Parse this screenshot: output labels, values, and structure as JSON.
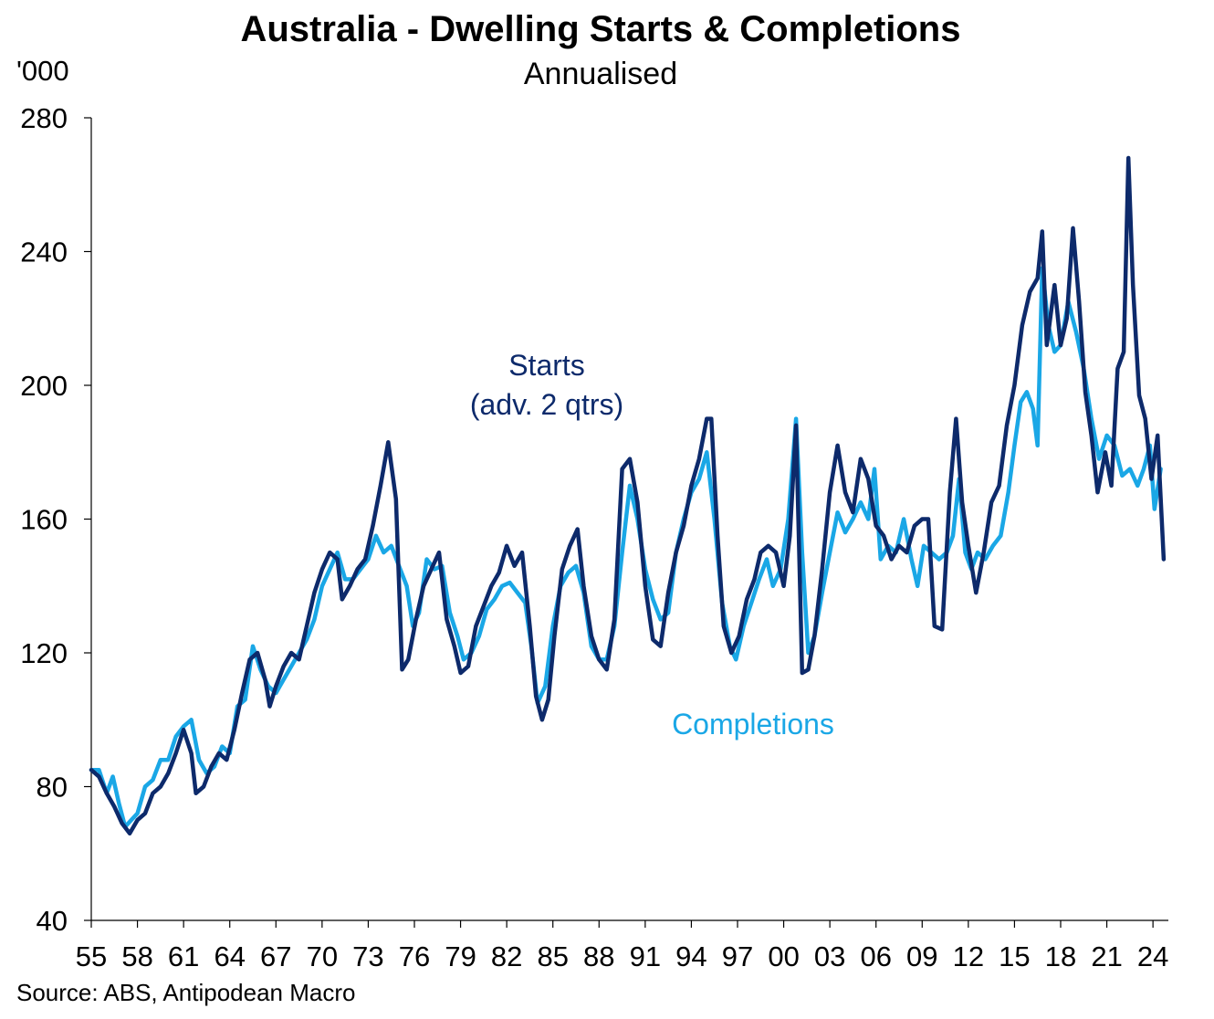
{
  "title": "Australia  - Dwelling Starts & Completions",
  "subtitle": "Annualised",
  "unit_label": "'000",
  "source": "Source: ABS, Antipodean  Macro",
  "colors": {
    "starts": "#0d2a6b",
    "completions": "#1aa7e6",
    "axis": "#000000"
  },
  "chart_data": {
    "type": "line",
    "title": "Australia  - Dwelling Starts & Completions",
    "subtitle": "Annualised",
    "ylabel": "'000",
    "xlabel": "",
    "ylim": [
      40,
      280
    ],
    "yticks": [
      40,
      80,
      120,
      160,
      200,
      240,
      280
    ],
    "xlim": [
      1955,
      2025
    ],
    "xtick_labels": [
      "55",
      "58",
      "61",
      "64",
      "67",
      "70",
      "73",
      "76",
      "79",
      "82",
      "85",
      "88",
      "91",
      "94",
      "97",
      "00",
      "03",
      "06",
      "09",
      "12",
      "15",
      "18",
      "21",
      "24"
    ],
    "grid": false,
    "annotations": [
      {
        "text": "Starts",
        "series": "Starts"
      },
      {
        "text": "(adv. 2 qtrs)",
        "series": "Starts"
      },
      {
        "text": "Completions",
        "series": "Completions"
      }
    ],
    "series": [
      {
        "name": "Starts",
        "color": "#0d2a6b",
        "points": [
          [
            1955.0,
            85
          ],
          [
            1955.5,
            83
          ],
          [
            1956.0,
            78
          ],
          [
            1956.5,
            74
          ],
          [
            1957.0,
            69
          ],
          [
            1957.5,
            66
          ],
          [
            1958.0,
            70
          ],
          [
            1958.5,
            72
          ],
          [
            1959.0,
            78
          ],
          [
            1959.5,
            80
          ],
          [
            1960.0,
            84
          ],
          [
            1960.5,
            90
          ],
          [
            1961.0,
            97
          ],
          [
            1961.5,
            90
          ],
          [
            1961.8,
            78
          ],
          [
            1962.3,
            80
          ],
          [
            1962.8,
            86
          ],
          [
            1963.3,
            90
          ],
          [
            1963.8,
            88
          ],
          [
            1964.3,
            97
          ],
          [
            1964.8,
            108
          ],
          [
            1965.3,
            118
          ],
          [
            1965.8,
            120
          ],
          [
            1966.3,
            112
          ],
          [
            1966.6,
            104
          ],
          [
            1967.0,
            110
          ],
          [
            1967.5,
            116
          ],
          [
            1968.0,
            120
          ],
          [
            1968.5,
            118
          ],
          [
            1969.0,
            128
          ],
          [
            1969.5,
            138
          ],
          [
            1970.0,
            145
          ],
          [
            1970.5,
            150
          ],
          [
            1971.0,
            148
          ],
          [
            1971.3,
            136
          ],
          [
            1971.8,
            140
          ],
          [
            1972.3,
            145
          ],
          [
            1972.8,
            148
          ],
          [
            1973.3,
            158
          ],
          [
            1973.8,
            170
          ],
          [
            1974.3,
            183
          ],
          [
            1974.8,
            166
          ],
          [
            1975.2,
            115
          ],
          [
            1975.6,
            118
          ],
          [
            1976.1,
            130
          ],
          [
            1976.6,
            140
          ],
          [
            1977.1,
            145
          ],
          [
            1977.6,
            150
          ],
          [
            1978.1,
            130
          ],
          [
            1978.6,
            122
          ],
          [
            1979.0,
            114
          ],
          [
            1979.5,
            116
          ],
          [
            1980.0,
            128
          ],
          [
            1980.5,
            134
          ],
          [
            1981.0,
            140
          ],
          [
            1981.5,
            144
          ],
          [
            1982.0,
            152
          ],
          [
            1982.5,
            146
          ],
          [
            1983.0,
            150
          ],
          [
            1983.5,
            128
          ],
          [
            1983.9,
            107
          ],
          [
            1984.3,
            100
          ],
          [
            1984.7,
            106
          ],
          [
            1985.1,
            125
          ],
          [
            1985.6,
            145
          ],
          [
            1986.1,
            152
          ],
          [
            1986.6,
            157
          ],
          [
            1987.0,
            140
          ],
          [
            1987.5,
            125
          ],
          [
            1988.0,
            118
          ],
          [
            1988.5,
            115
          ],
          [
            1989.0,
            130
          ],
          [
            1989.5,
            175
          ],
          [
            1990.0,
            178
          ],
          [
            1990.5,
            165
          ],
          [
            1991.0,
            140
          ],
          [
            1991.5,
            124
          ],
          [
            1992.0,
            122
          ],
          [
            1992.5,
            138
          ],
          [
            1993.0,
            150
          ],
          [
            1993.5,
            158
          ],
          [
            1994.0,
            170
          ],
          [
            1994.5,
            178
          ],
          [
            1995.0,
            190
          ],
          [
            1995.3,
            190
          ],
          [
            1995.7,
            155
          ],
          [
            1996.1,
            128
          ],
          [
            1996.6,
            120
          ],
          [
            1997.1,
            125
          ],
          [
            1997.6,
            136
          ],
          [
            1998.1,
            142
          ],
          [
            1998.5,
            150
          ],
          [
            1999.0,
            152
          ],
          [
            1999.5,
            150
          ],
          [
            2000.0,
            140
          ],
          [
            2000.4,
            155
          ],
          [
            2000.8,
            188
          ],
          [
            2001.2,
            114
          ],
          [
            2001.6,
            115
          ],
          [
            2002.0,
            125
          ],
          [
            2002.5,
            145
          ],
          [
            2003.0,
            168
          ],
          [
            2003.5,
            182
          ],
          [
            2004.0,
            168
          ],
          [
            2004.5,
            162
          ],
          [
            2005.0,
            178
          ],
          [
            2005.5,
            172
          ],
          [
            2006.0,
            158
          ],
          [
            2006.5,
            155
          ],
          [
            2007.0,
            148
          ],
          [
            2007.5,
            152
          ],
          [
            2008.0,
            150
          ],
          [
            2008.5,
            158
          ],
          [
            2009.0,
            160
          ],
          [
            2009.4,
            160
          ],
          [
            2009.8,
            128
          ],
          [
            2010.3,
            127
          ],
          [
            2010.8,
            168
          ],
          [
            2011.2,
            190
          ],
          [
            2011.6,
            165
          ],
          [
            2012.0,
            152
          ],
          [
            2012.5,
            138
          ],
          [
            2013.0,
            150
          ],
          [
            2013.5,
            165
          ],
          [
            2014.0,
            170
          ],
          [
            2014.5,
            188
          ],
          [
            2015.0,
            200
          ],
          [
            2015.5,
            218
          ],
          [
            2016.0,
            228
          ],
          [
            2016.5,
            232
          ],
          [
            2016.8,
            246
          ],
          [
            2017.1,
            212
          ],
          [
            2017.6,
            230
          ],
          [
            2018.0,
            212
          ],
          [
            2018.4,
            220
          ],
          [
            2018.8,
            247
          ],
          [
            2019.2,
            225
          ],
          [
            2019.6,
            198
          ],
          [
            2020.0,
            185
          ],
          [
            2020.4,
            168
          ],
          [
            2020.9,
            180
          ],
          [
            2021.3,
            170
          ],
          [
            2021.7,
            205
          ],
          [
            2022.1,
            210
          ],
          [
            2022.4,
            268
          ],
          [
            2022.7,
            230
          ],
          [
            2023.1,
            197
          ],
          [
            2023.5,
            190
          ],
          [
            2023.9,
            172
          ],
          [
            2024.3,
            185
          ],
          [
            2024.7,
            148
          ]
        ]
      },
      {
        "name": "Completions",
        "color": "#1aa7e6",
        "points": [
          [
            1955.0,
            85
          ],
          [
            1955.5,
            85
          ],
          [
            1956.0,
            78
          ],
          [
            1956.4,
            83
          ],
          [
            1956.8,
            75
          ],
          [
            1957.2,
            68
          ],
          [
            1957.6,
            70
          ],
          [
            1958.0,
            72
          ],
          [
            1958.5,
            80
          ],
          [
            1959.0,
            82
          ],
          [
            1959.5,
            88
          ],
          [
            1960.0,
            88
          ],
          [
            1960.5,
            95
          ],
          [
            1961.0,
            98
          ],
          [
            1961.5,
            100
          ],
          [
            1962.0,
            88
          ],
          [
            1962.5,
            84
          ],
          [
            1963.0,
            86
          ],
          [
            1963.5,
            92
          ],
          [
            1964.0,
            90
          ],
          [
            1964.5,
            104
          ],
          [
            1965.0,
            106
          ],
          [
            1965.5,
            122
          ],
          [
            1966.0,
            115
          ],
          [
            1966.5,
            110
          ],
          [
            1967.0,
            108
          ],
          [
            1967.5,
            112
          ],
          [
            1968.0,
            116
          ],
          [
            1968.5,
            120
          ],
          [
            1969.0,
            124
          ],
          [
            1969.5,
            130
          ],
          [
            1970.0,
            140
          ],
          [
            1970.5,
            145
          ],
          [
            1971.0,
            150
          ],
          [
            1971.5,
            142
          ],
          [
            1972.0,
            142
          ],
          [
            1972.5,
            145
          ],
          [
            1973.0,
            148
          ],
          [
            1973.5,
            155
          ],
          [
            1974.0,
            150
          ],
          [
            1974.5,
            152
          ],
          [
            1975.0,
            146
          ],
          [
            1975.5,
            140
          ],
          [
            1975.9,
            128
          ],
          [
            1976.3,
            132
          ],
          [
            1976.8,
            148
          ],
          [
            1977.3,
            145
          ],
          [
            1977.8,
            146
          ],
          [
            1978.3,
            132
          ],
          [
            1978.8,
            125
          ],
          [
            1979.2,
            118
          ],
          [
            1979.7,
            120
          ],
          [
            1980.2,
            125
          ],
          [
            1980.7,
            133
          ],
          [
            1981.2,
            136
          ],
          [
            1981.7,
            140
          ],
          [
            1982.2,
            141
          ],
          [
            1982.7,
            138
          ],
          [
            1983.2,
            135
          ],
          [
            1983.6,
            122
          ],
          [
            1984.0,
            105
          ],
          [
            1984.5,
            110
          ],
          [
            1985.0,
            128
          ],
          [
            1985.5,
            140
          ],
          [
            1986.0,
            144
          ],
          [
            1986.5,
            146
          ],
          [
            1987.0,
            138
          ],
          [
            1987.5,
            122
          ],
          [
            1988.0,
            118
          ],
          [
            1988.5,
            118
          ],
          [
            1989.0,
            128
          ],
          [
            1989.5,
            150
          ],
          [
            1990.0,
            170
          ],
          [
            1990.5,
            160
          ],
          [
            1991.0,
            145
          ],
          [
            1991.5,
            136
          ],
          [
            1992.0,
            130
          ],
          [
            1992.5,
            132
          ],
          [
            1993.0,
            150
          ],
          [
            1993.5,
            160
          ],
          [
            1994.0,
            168
          ],
          [
            1994.5,
            172
          ],
          [
            1995.0,
            180
          ],
          [
            1995.5,
            160
          ],
          [
            1996.0,
            135
          ],
          [
            1996.5,
            122
          ],
          [
            1996.9,
            118
          ],
          [
            1997.4,
            128
          ],
          [
            1997.9,
            135
          ],
          [
            1998.4,
            142
          ],
          [
            1998.9,
            148
          ],
          [
            1999.3,
            140
          ],
          [
            1999.8,
            145
          ],
          [
            2000.3,
            160
          ],
          [
            2000.8,
            190
          ],
          [
            2001.2,
            150
          ],
          [
            2001.6,
            120
          ],
          [
            2002.0,
            125
          ],
          [
            2002.5,
            138
          ],
          [
            2003.0,
            150
          ],
          [
            2003.5,
            162
          ],
          [
            2004.0,
            156
          ],
          [
            2004.5,
            160
          ],
          [
            2005.0,
            165
          ],
          [
            2005.5,
            160
          ],
          [
            2005.9,
            175
          ],
          [
            2006.3,
            148
          ],
          [
            2006.8,
            152
          ],
          [
            2007.3,
            150
          ],
          [
            2007.8,
            160
          ],
          [
            2008.3,
            148
          ],
          [
            2008.7,
            140
          ],
          [
            2009.1,
            152
          ],
          [
            2009.6,
            150
          ],
          [
            2010.1,
            148
          ],
          [
            2010.6,
            150
          ],
          [
            2011.0,
            155
          ],
          [
            2011.4,
            172
          ],
          [
            2011.8,
            150
          ],
          [
            2012.2,
            145
          ],
          [
            2012.6,
            150
          ],
          [
            2013.1,
            148
          ],
          [
            2013.6,
            152
          ],
          [
            2014.1,
            155
          ],
          [
            2014.6,
            168
          ],
          [
            2015.0,
            182
          ],
          [
            2015.4,
            195
          ],
          [
            2015.8,
            198
          ],
          [
            2016.2,
            193
          ],
          [
            2016.5,
            182
          ],
          [
            2016.8,
            235
          ],
          [
            2017.2,
            218
          ],
          [
            2017.6,
            210
          ],
          [
            2018.0,
            212
          ],
          [
            2018.5,
            225
          ],
          [
            2019.0,
            216
          ],
          [
            2019.5,
            205
          ],
          [
            2020.0,
            190
          ],
          [
            2020.5,
            178
          ],
          [
            2021.0,
            185
          ],
          [
            2021.5,
            182
          ],
          [
            2022.0,
            173
          ],
          [
            2022.5,
            175
          ],
          [
            2023.0,
            170
          ],
          [
            2023.4,
            175
          ],
          [
            2023.8,
            182
          ],
          [
            2024.1,
            163
          ],
          [
            2024.5,
            175
          ]
        ]
      }
    ]
  }
}
